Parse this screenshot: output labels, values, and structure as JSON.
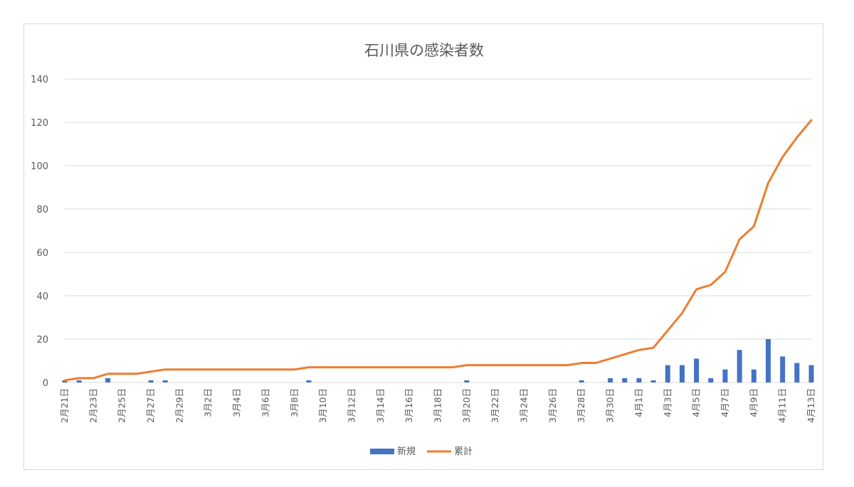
{
  "chart_data": {
    "type": "bar+line",
    "title": "石川県の感染者数",
    "xlabel": "",
    "ylabel": "",
    "ylim": [
      0,
      140
    ],
    "yticks": [
      0,
      20,
      40,
      60,
      80,
      100,
      120,
      140
    ],
    "grid": true,
    "legend_position": "bottom",
    "x": [
      "2月21日",
      "2月22日",
      "2月23日",
      "2月24日",
      "2月25日",
      "2月26日",
      "2月27日",
      "2月28日",
      "2月29日",
      "3月1日",
      "3月2日",
      "3月3日",
      "3月4日",
      "3月5日",
      "3月6日",
      "3月7日",
      "3月8日",
      "3月9日",
      "3月10日",
      "3月11日",
      "3月12日",
      "3月13日",
      "3月14日",
      "3月15日",
      "3月16日",
      "3月17日",
      "3月18日",
      "3月19日",
      "3月20日",
      "3月21日",
      "3月22日",
      "3月23日",
      "3月24日",
      "3月25日",
      "3月26日",
      "3月27日",
      "3月28日",
      "3月29日",
      "3月30日",
      "3月31日",
      "4月1日",
      "4月2日",
      "4月3日",
      "4月4日",
      "4月5日",
      "4月6日",
      "4月7日",
      "4月8日",
      "4月9日",
      "4月10日",
      "4月11日",
      "4月12日",
      "4月13日"
    ],
    "x_tick_labels": [
      "2月21日",
      "2月23日",
      "2月25日",
      "2月27日",
      "2月29日",
      "3月2日",
      "3月4日",
      "3月6日",
      "3月8日",
      "3月10日",
      "3月12日",
      "3月14日",
      "3月16日",
      "3月18日",
      "3月20日",
      "3月22日",
      "3月24日",
      "3月26日",
      "3月28日",
      "3月30日",
      "4月1日",
      "4月3日",
      "4月5日",
      "4月7日",
      "4月9日",
      "4月11日",
      "4月13日"
    ],
    "series": [
      {
        "name": "新規",
        "type": "bar",
        "color": "#4472c4",
        "values": [
          1,
          1,
          0,
          2,
          0,
          0,
          1,
          1,
          0,
          0,
          0,
          0,
          0,
          0,
          0,
          0,
          0,
          1,
          0,
          0,
          0,
          0,
          0,
          0,
          0,
          0,
          0,
          0,
          1,
          0,
          0,
          0,
          0,
          0,
          0,
          0,
          1,
          0,
          2,
          2,
          2,
          1,
          8,
          8,
          11,
          2,
          6,
          15,
          6,
          20,
          12,
          9,
          8
        ]
      },
      {
        "name": "累計",
        "type": "line",
        "color": "#ed7d31",
        "values": [
          1,
          2,
          2,
          4,
          4,
          4,
          5,
          6,
          6,
          6,
          6,
          6,
          6,
          6,
          6,
          6,
          6,
          7,
          7,
          7,
          7,
          7,
          7,
          7,
          7,
          7,
          7,
          7,
          8,
          8,
          8,
          8,
          8,
          8,
          8,
          8,
          9,
          9,
          11,
          13,
          15,
          16,
          24,
          32,
          43,
          45,
          51,
          66,
          72,
          92,
          104,
          113,
          121
        ]
      }
    ]
  }
}
